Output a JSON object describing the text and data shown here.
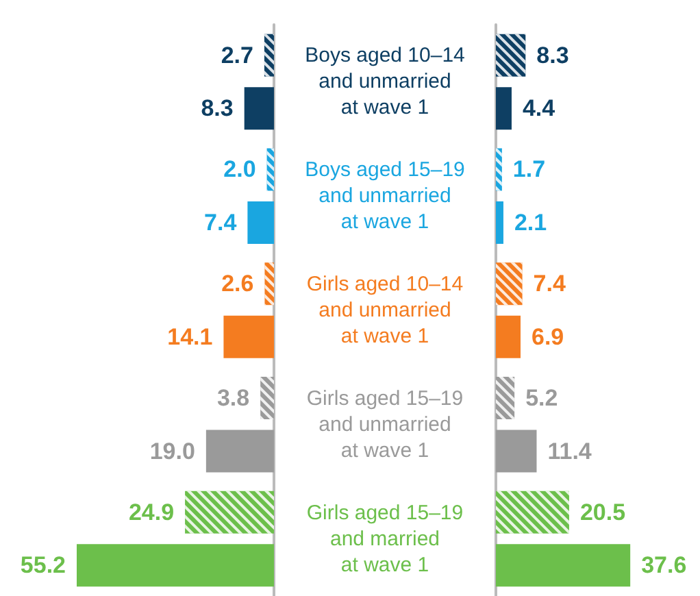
{
  "chart_data": [
    {
      "type": "bar",
      "orientation": "horizontal",
      "tick_labels": "y",
      "categories": [
        "Boys aged 10–14\nand unmarried\nat wave 1",
        "Boys aged 15–19\nand unmarried\nat wave 1",
        "Girls aged 10–14\nand unmarried\nat wave 1",
        "Girls aged 15–19\nand unmarried\nat wave 1",
        "Girls aged 15–19\nand married\nat wave 1"
      ],
      "series": [
        {
          "colors": [
            "#0e3f63",
            "#1aa6e0",
            "#f47c20",
            "#9a9a9a",
            "#6cbf4b"
          ],
          "values": [
            2.7,
            2.0,
            2.6,
            3.8,
            24.9
          ],
          "value_labels": [
            "2.7",
            "2.0",
            "2.6",
            "3.8",
            "24.9"
          ]
        },
        {
          "colors": [
            "#0e3f63",
            "#1aa6e0",
            "#f47c20",
            "#9a9a9a",
            "#6cbf4b"
          ],
          "values": [
            8.3,
            7.4,
            14.1,
            19.0,
            55.2
          ],
          "value_labels": [
            "8.3",
            "7.4",
            "14.1",
            "19.0",
            "55.2"
          ]
        }
      ]
    },
    {
      "type": "bar",
      "orientation": "horizontal",
      "tick_labels": false,
      "series": [
        {
          "colors": [
            "#0e3f63",
            "#1aa6e0",
            "#f47c20",
            "#9a9a9a",
            "#6cbf4b"
          ],
          "values": [
            8.3,
            1.7,
            7.4,
            5.2,
            20.5
          ],
          "value_labels": [
            "8.3",
            "1.7",
            "7.4",
            "5.2",
            "20.5"
          ]
        },
        {
          "colors": [
            "#0e3f63",
            "#1aa6e0",
            "#f47c20",
            "#9a9a9a",
            "#6cbf4b"
          ],
          "values": [
            4.4,
            2.1,
            6.9,
            11.4,
            37.6
          ],
          "value_labels": [
            "4.4",
            "2.1",
            "6.9",
            "11.4",
            "37.6"
          ]
        }
      ]
    }
  ]
}
